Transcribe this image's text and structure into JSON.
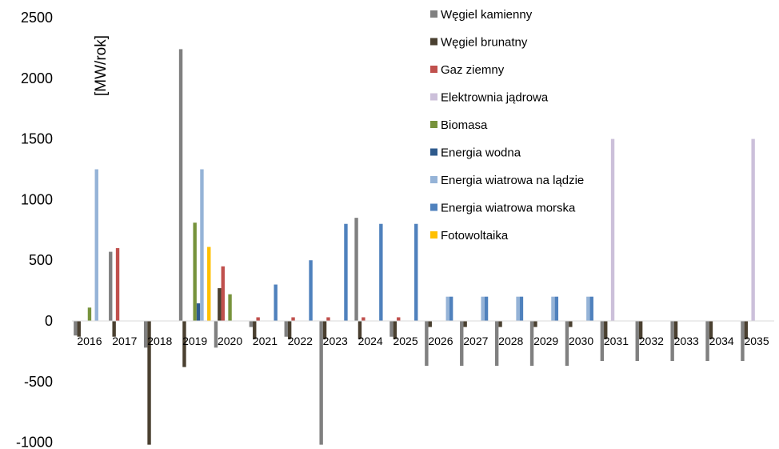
{
  "chart_data": {
    "type": "bar",
    "ylabel": "[MW/rok]",
    "ylim": [
      -1000,
      2500
    ],
    "yticks": [
      -1000,
      -500,
      0,
      500,
      1000,
      1500,
      2000,
      2500
    ],
    "categories": [
      "2016",
      "2017",
      "2018",
      "2019",
      "2020",
      "2021",
      "2022",
      "2023",
      "2024",
      "2025",
      "2026",
      "2027",
      "2028",
      "2029",
      "2030",
      "2031",
      "2032",
      "2033",
      "2034",
      "2035"
    ],
    "legend_position": "top-right",
    "series": [
      {
        "name": "Węgiel kamienny",
        "color": "#808080",
        "values": [
          -120,
          570,
          -220,
          2240,
          -220,
          -50,
          -130,
          -1020,
          850,
          -130,
          -370,
          -370,
          -370,
          -370,
          -370,
          -330,
          -330,
          -330,
          -330,
          -330
        ]
      },
      {
        "name": "Węgiel brunatny",
        "color": "#4a4030",
        "values": [
          -130,
          -130,
          -1020,
          -380,
          270,
          -150,
          -150,
          -150,
          -150,
          -150,
          -50,
          -50,
          -50,
          -50,
          -50,
          -150,
          -150,
          -150,
          -150,
          -150
        ]
      },
      {
        "name": "Gaz ziemny",
        "color": "#c0504d",
        "values": [
          0,
          600,
          0,
          0,
          450,
          30,
          30,
          30,
          30,
          30,
          0,
          0,
          0,
          0,
          0,
          0,
          0,
          0,
          0,
          0
        ]
      },
      {
        "name": "Elektrownia jądrowa",
        "color": "#ccc0da",
        "values": [
          0,
          0,
          0,
          0,
          0,
          0,
          0,
          0,
          0,
          0,
          0,
          0,
          0,
          0,
          0,
          1500,
          0,
          0,
          0,
          1500
        ]
      },
      {
        "name": "Biomasa",
        "color": "#77933c",
        "values": [
          110,
          0,
          0,
          810,
          220,
          0,
          0,
          0,
          0,
          0,
          0,
          0,
          0,
          0,
          0,
          0,
          0,
          0,
          0,
          0
        ]
      },
      {
        "name": "Energia wodna",
        "color": "#2e5a8c",
        "values": [
          0,
          0,
          0,
          145,
          0,
          0,
          0,
          0,
          0,
          0,
          0,
          0,
          0,
          0,
          0,
          0,
          0,
          0,
          0,
          0
        ]
      },
      {
        "name": "Energia wiatrowa na lądzie",
        "color": "#95b3d7",
        "values": [
          1250,
          0,
          0,
          1250,
          0,
          0,
          0,
          0,
          0,
          0,
          200,
          200,
          200,
          200,
          200,
          0,
          0,
          0,
          0,
          0
        ]
      },
      {
        "name": "Energia wiatrowa morska",
        "color": "#4f81bd",
        "values": [
          0,
          0,
          0,
          0,
          0,
          300,
          500,
          800,
          800,
          800,
          200,
          200,
          200,
          200,
          200,
          0,
          0,
          0,
          0,
          0
        ]
      },
      {
        "name": "Fotowoltaika",
        "color": "#ffc000",
        "values": [
          0,
          0,
          0,
          610,
          0,
          0,
          0,
          0,
          0,
          0,
          0,
          0,
          0,
          0,
          0,
          0,
          0,
          0,
          0,
          0
        ]
      }
    ]
  }
}
